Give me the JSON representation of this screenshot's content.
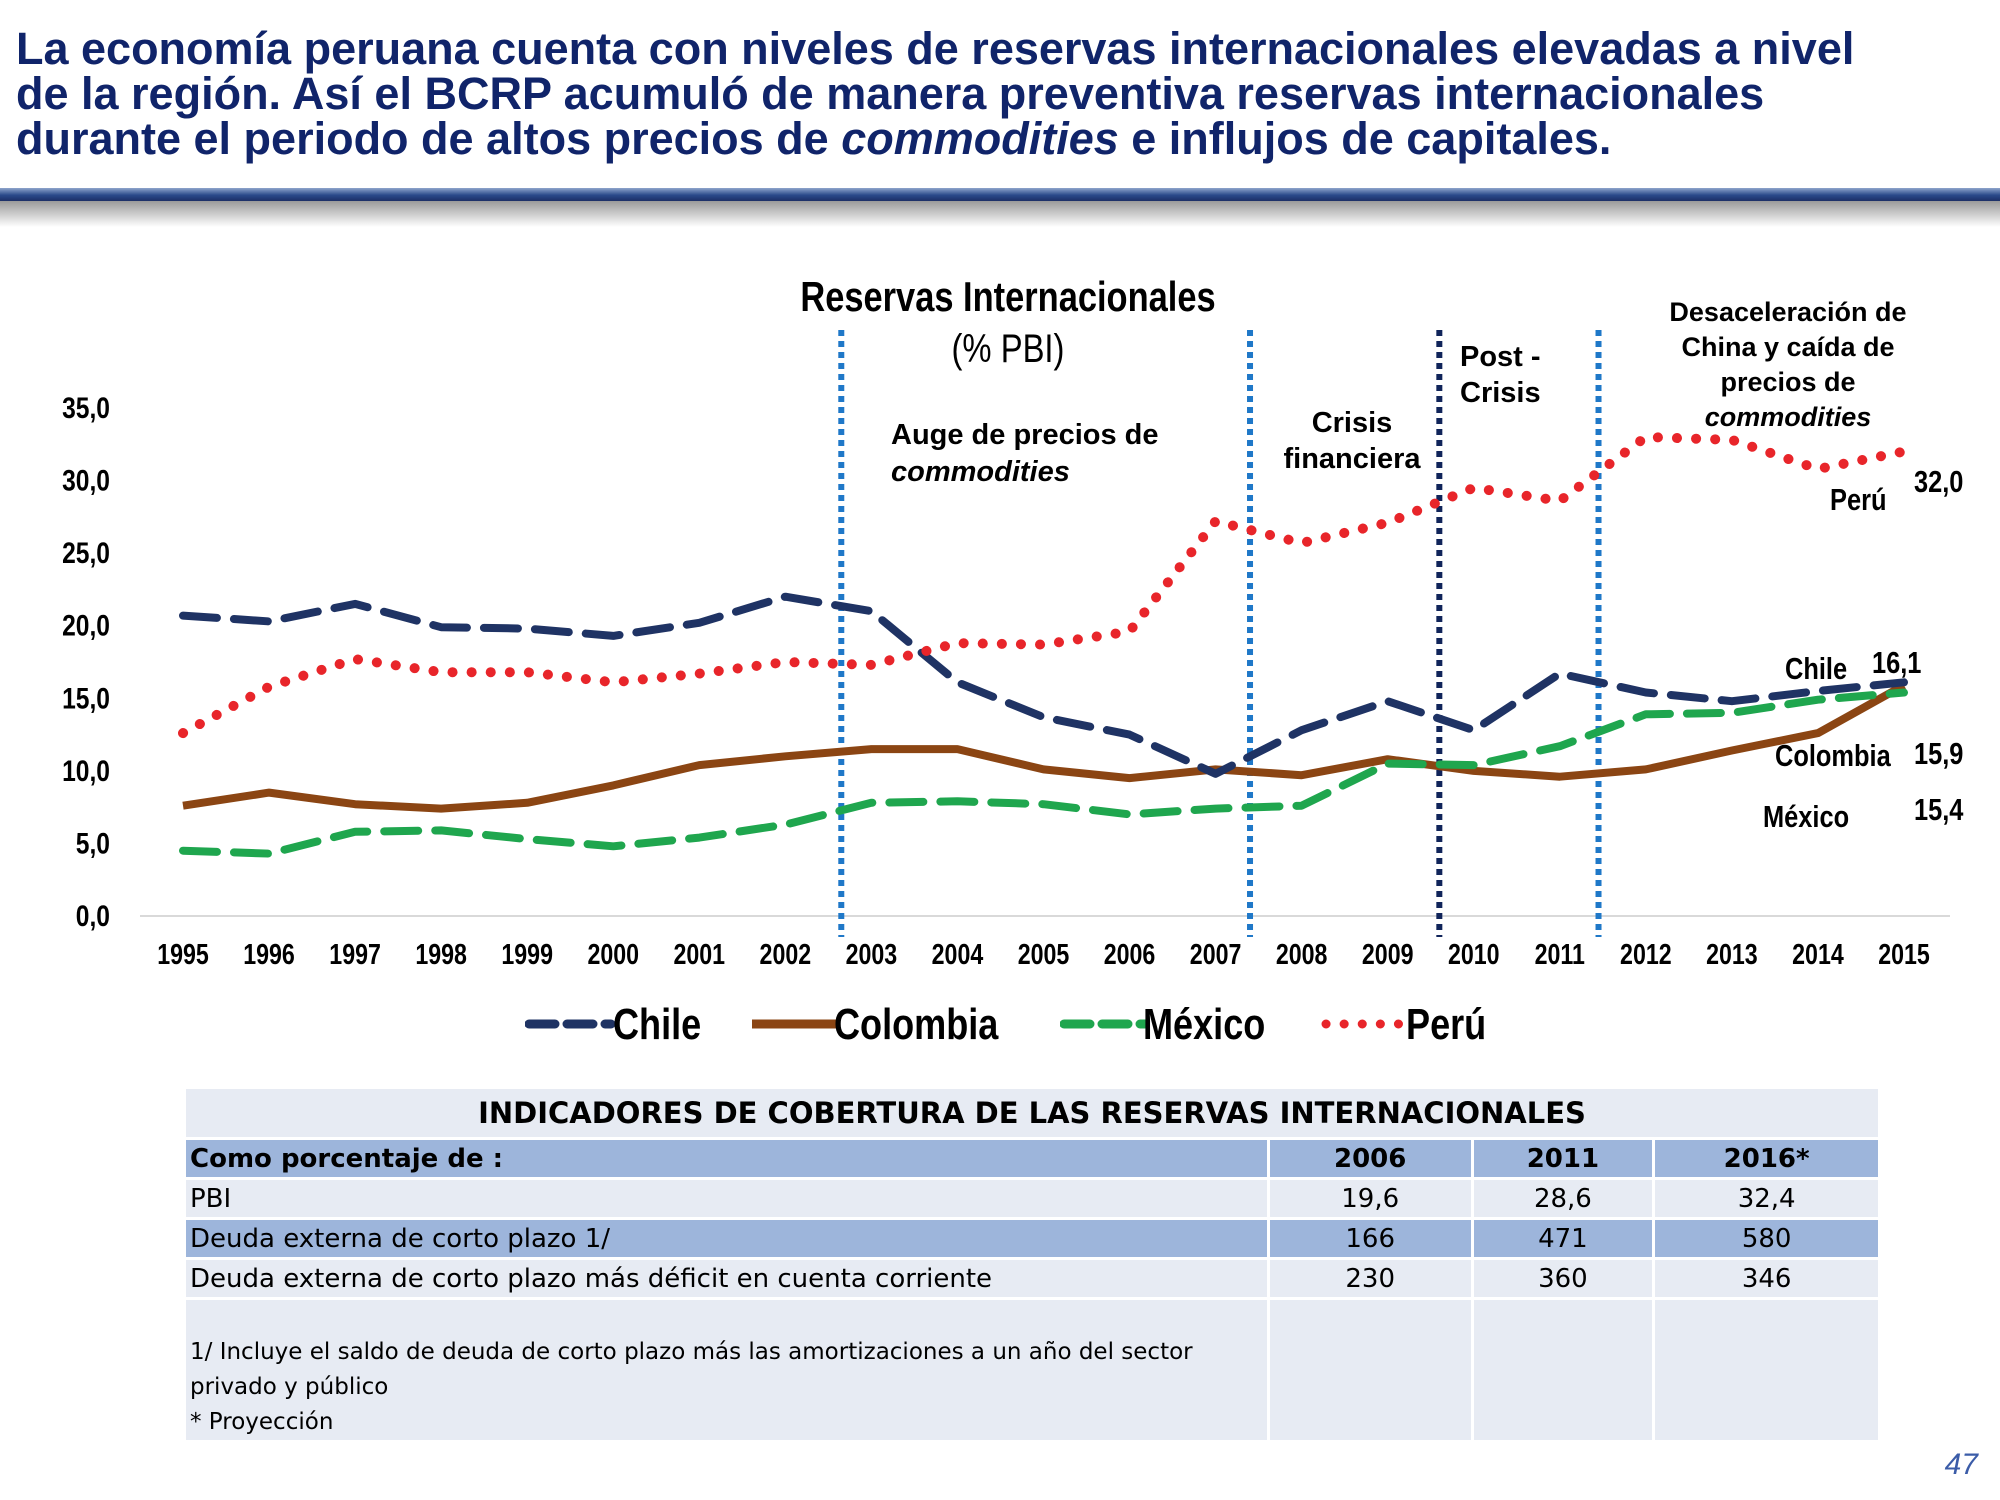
{
  "header": {
    "line1": "La economía peruana cuenta con niveles de reservas internacionales elevadas a nivel",
    "line2": "de la región. Así el BCRP acumuló de manera preventiva reservas internacionales",
    "line3_a": "durante el periodo de altos precios de ",
    "line3_b": "commodities",
    "line3_c": " e influjos de capitales."
  },
  "chart_data": {
    "type": "line",
    "title": "Reservas Internacionales",
    "subtitle": "(% PBI)",
    "categories": [
      "1995",
      "1996",
      "1997",
      "1998",
      "1999",
      "2000",
      "2001",
      "2002",
      "2003",
      "2004",
      "2005",
      "2006",
      "2007",
      "2008",
      "2009",
      "2010",
      "2011",
      "2012",
      "2013",
      "2014",
      "2015"
    ],
    "ylim": [
      0,
      35
    ],
    "yticks": [
      "0,0",
      "5,0",
      "10,0",
      "15,0",
      "20,0",
      "25,0",
      "30,0",
      "35,0"
    ],
    "series": [
      {
        "name": "Chile",
        "color": "#1f3364",
        "style": "dash",
        "values": [
          20.7,
          20.3,
          21.5,
          19.9,
          19.8,
          19.3,
          20.2,
          22.0,
          21.0,
          16.1,
          13.7,
          12.5,
          9.8,
          12.8,
          14.8,
          12.8,
          16.7,
          15.4,
          14.8,
          15.5,
          16.1
        ]
      },
      {
        "name": "Colombia",
        "color": "#8b4513",
        "style": "solid",
        "values": [
          7.6,
          8.5,
          7.7,
          7.4,
          7.8,
          9.0,
          10.4,
          11.0,
          11.5,
          11.5,
          10.1,
          9.5,
          10.1,
          9.7,
          10.8,
          10.0,
          9.6,
          10.1,
          11.4,
          12.6,
          15.9
        ]
      },
      {
        "name": "México",
        "color": "#1fa64e",
        "style": "dash",
        "values": [
          4.5,
          4.3,
          5.8,
          5.9,
          5.3,
          4.8,
          5.4,
          6.3,
          7.8,
          7.9,
          7.7,
          7.0,
          7.4,
          7.6,
          10.5,
          10.4,
          11.7,
          13.9,
          14.0,
          14.9,
          15.4
        ]
      },
      {
        "name": "Perú",
        "color": "#e8252a",
        "style": "dot",
        "values": [
          12.6,
          15.8,
          17.7,
          16.8,
          16.8,
          16.1,
          16.7,
          17.5,
          17.3,
          18.8,
          18.7,
          19.6,
          27.2,
          25.7,
          27.1,
          29.5,
          28.6,
          33.0,
          32.8,
          30.8,
          32.0
        ]
      }
    ],
    "period_labels": {
      "auge_1": "Auge de precios de",
      "auge_2": "commodities",
      "crisis_1": "Crisis",
      "crisis_2": "financiera",
      "post_1": "Post -",
      "post_2": "Crisis",
      "desac_1": "Desaceleración de",
      "desac_2": "China y caída de",
      "desac_3": "precios  de",
      "desac_4": "commodities"
    },
    "end_labels": {
      "peru_name": "Perú",
      "peru_value": "32,0",
      "chile_name": "Chile",
      "chile_value": "16,1",
      "colombia_name": "Colombia",
      "colombia_value": "15,9",
      "mexico_name": "México",
      "mexico_value": "15,4"
    }
  },
  "legend": {
    "chile": "Chile",
    "colombia": "Colombia",
    "mexico": "México",
    "peru": "Perú"
  },
  "table": {
    "title": "INDICADORES DE COBERTURA DE LAS RESERVAS INTERNACIONALES",
    "header": [
      "Como porcentaje de :",
      "2006",
      "2011",
      "2016*"
    ],
    "rows": [
      [
        "PBI",
        "19,6",
        "28,6",
        "32,4"
      ],
      [
        "Deuda externa de corto plazo 1/",
        "166",
        "471",
        "580"
      ],
      [
        "Deuda externa de corto plazo más déficit en cuenta corriente",
        "230",
        "360",
        "346"
      ]
    ],
    "note_1": "1/ Incluye el saldo de deuda de corto plazo más las amortizaciones a un año del sector",
    "note_2": "privado y público",
    "note_3": "* Proyección"
  },
  "page_number": "47"
}
